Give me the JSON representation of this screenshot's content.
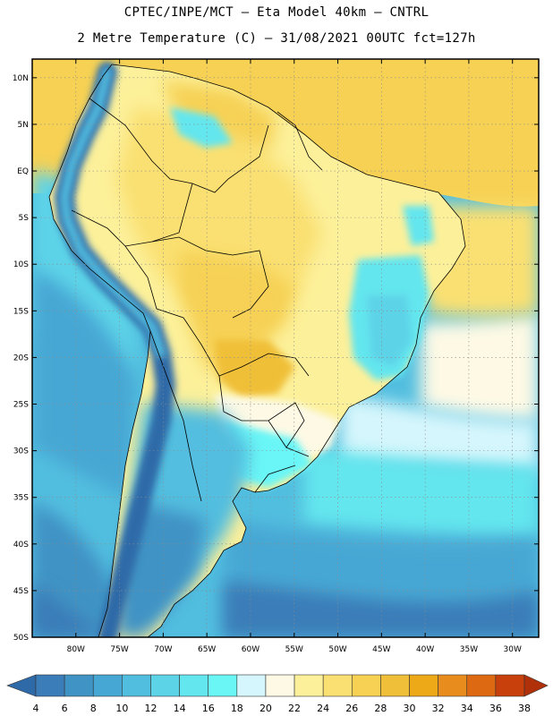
{
  "header": {
    "line1": "CPTEC/INPE/MCT –  Eta Model 40km – CNTRL",
    "line2": "2 Metre Temperature (C) – 31/08/2021 00UTC fct=127h"
  },
  "map": {
    "lon_range": [
      -85,
      -27
    ],
    "lat_range": [
      -50,
      12
    ],
    "lon_ticks": [
      {
        "value": -80,
        "label": "80W"
      },
      {
        "value": -75,
        "label": "75W"
      },
      {
        "value": -70,
        "label": "70W"
      },
      {
        "value": -65,
        "label": "65W"
      },
      {
        "value": -60,
        "label": "60W"
      },
      {
        "value": -55,
        "label": "55W"
      },
      {
        "value": -50,
        "label": "50W"
      },
      {
        "value": -45,
        "label": "45W"
      },
      {
        "value": -40,
        "label": "40W"
      },
      {
        "value": -35,
        "label": "35W"
      },
      {
        "value": -30,
        "label": "30W"
      }
    ],
    "lat_ticks": [
      {
        "value": 10,
        "label": "10N"
      },
      {
        "value": 5,
        "label": "5N"
      },
      {
        "value": 0,
        "label": "EQ"
      },
      {
        "value": -5,
        "label": "5S"
      },
      {
        "value": -10,
        "label": "10S"
      },
      {
        "value": -15,
        "label": "15S"
      },
      {
        "value": -20,
        "label": "20S"
      },
      {
        "value": -25,
        "label": "25S"
      },
      {
        "value": -30,
        "label": "30S"
      },
      {
        "value": -35,
        "label": "35S"
      },
      {
        "value": -40,
        "label": "40S"
      },
      {
        "value": -45,
        "label": "45S"
      },
      {
        "value": -50,
        "label": "50S"
      }
    ]
  },
  "colorbar": {
    "labels": [
      "4",
      "6",
      "8",
      "10",
      "12",
      "14",
      "16",
      "18",
      "20",
      "22",
      "24",
      "26",
      "28",
      "30",
      "32",
      "34",
      "36",
      "38"
    ],
    "colors": [
      "#2f6aa8",
      "#3a7db8",
      "#3f93c5",
      "#47a7d4",
      "#52bedf",
      "#5dd3e8",
      "#63e6ee",
      "#6bf6f6",
      "#d5f6fc",
      "#fdf9e5",
      "#fcf09a",
      "#fae072",
      "#f6d154",
      "#f0bf39",
      "#eea919",
      "#e88d1d",
      "#dd6a12",
      "#c8400b",
      "#b0300a"
    ]
  }
}
